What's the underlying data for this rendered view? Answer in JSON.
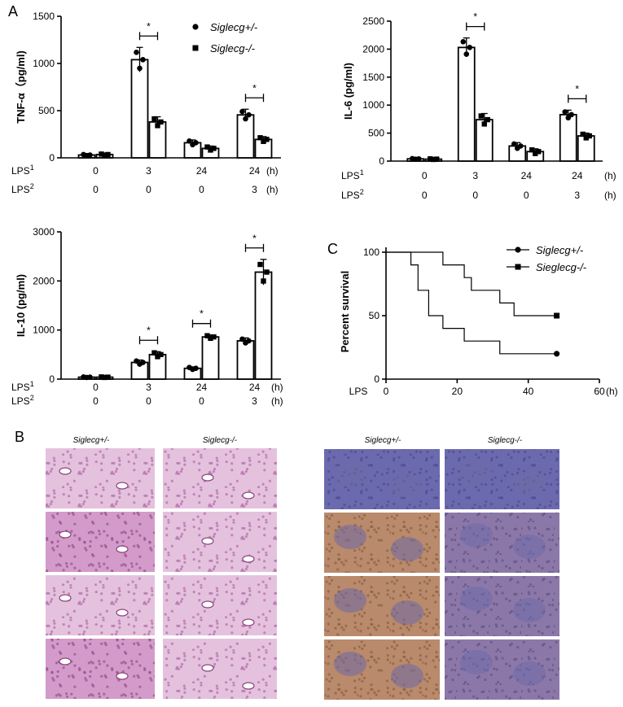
{
  "panel_labels": {
    "a": "A",
    "b": "B",
    "c": "C"
  },
  "legend_labels": {
    "het": "Siglecg+/-",
    "ko": "Siglecg-/-",
    "ko_c": "Sieglecg-/-"
  },
  "condition_rows": {
    "lps1_label": "LPS",
    "lps2_label": "LPS",
    "sup1": "1",
    "sup2": "2",
    "lps1": [
      "0",
      "3",
      "24",
      "24"
    ],
    "lps2": [
      "0",
      "0",
      "0",
      "3"
    ],
    "unit": "(h)"
  },
  "significance_mark": "*",
  "chart_data": [
    {
      "type": "bar",
      "title": "",
      "ylabel": "TNF-α（pg/ml)",
      "ylim": [
        0,
        1500
      ],
      "yticks": [
        "0",
        "500",
        "1000",
        "1500"
      ],
      "categories": [
        "0/0",
        "3/0",
        "24/0",
        "24/3"
      ],
      "series": [
        {
          "name": "Siglecg+/-",
          "values": [
            30,
            1040,
            160,
            455
          ],
          "sd": [
            8,
            130,
            30,
            60
          ]
        },
        {
          "name": "Siglecg-/-",
          "values": [
            35,
            380,
            100,
            195
          ],
          "sd": [
            8,
            55,
            25,
            30
          ]
        }
      ],
      "significant": [
        false,
        true,
        false,
        true
      ]
    },
    {
      "type": "bar",
      "title": "",
      "ylabel": "IL-6 (pg/ml)",
      "ylim": [
        0,
        2500
      ],
      "yticks": [
        "0",
        "500",
        "1000",
        "1500",
        "2000",
        "2500"
      ],
      "categories": [
        "0/0",
        "3/0",
        "24/0",
        "24/3"
      ],
      "series": [
        {
          "name": "Siglecg+/-",
          "values": [
            40,
            2030,
            270,
            830
          ],
          "sd": [
            8,
            170,
            60,
            80
          ]
        },
        {
          "name": "Siglecg-/-",
          "values": [
            35,
            740,
            170,
            450
          ],
          "sd": [
            8,
            110,
            50,
            50
          ]
        }
      ],
      "significant": [
        false,
        true,
        false,
        true
      ]
    },
    {
      "type": "bar",
      "title": "",
      "ylabel": "IL-10 (pg/ml)",
      "ylim": [
        0,
        3000
      ],
      "yticks": [
        "0",
        "1000",
        "2000",
        "3000"
      ],
      "categories": [
        "0/0",
        "3/0",
        "24/0",
        "24/3"
      ],
      "series": [
        {
          "name": "Siglecg+/-",
          "values": [
            40,
            340,
            220,
            780
          ],
          "sd": [
            8,
            50,
            30,
            60
          ]
        },
        {
          "name": "Siglecg-/-",
          "values": [
            40,
            500,
            860,
            2180
          ],
          "sd": [
            8,
            60,
            40,
            260
          ]
        }
      ],
      "significant": [
        false,
        true,
        true,
        true
      ]
    },
    {
      "type": "line",
      "title": "",
      "ylabel": "Percent survival",
      "xlabel": "LPS",
      "xunit": "(h)",
      "xlim": [
        0,
        60
      ],
      "ylim": [
        0,
        100
      ],
      "xticks": [
        "0",
        "20",
        "40",
        "60"
      ],
      "yticks": [
        "0",
        "50",
        "100"
      ],
      "step": true,
      "series": [
        {
          "name": "Siglecg+/-",
          "x": [
            0,
            7,
            9,
            12,
            16,
            22,
            32,
            48
          ],
          "y": [
            100,
            90,
            70,
            50,
            40,
            30,
            20,
            20
          ]
        },
        {
          "name": "Sieglecg-/-",
          "x": [
            0,
            16,
            22,
            24,
            32,
            36,
            48
          ],
          "y": [
            100,
            90,
            80,
            70,
            60,
            50,
            50
          ]
        }
      ]
    }
  ],
  "histology": {
    "he_titles": [
      "Siglecg+/-",
      "Siglecg-/-"
    ],
    "ihc_titles": [
      "Siglecg+/-",
      "Siglecg-/-"
    ]
  },
  "colors": {
    "he_light": "#e4c2de",
    "he_dark": "#b56aa9",
    "ihc_blue": "#6c6aae",
    "ihc_brown": "#b98a6b",
    "ihc_purple": "#8c78a8"
  }
}
